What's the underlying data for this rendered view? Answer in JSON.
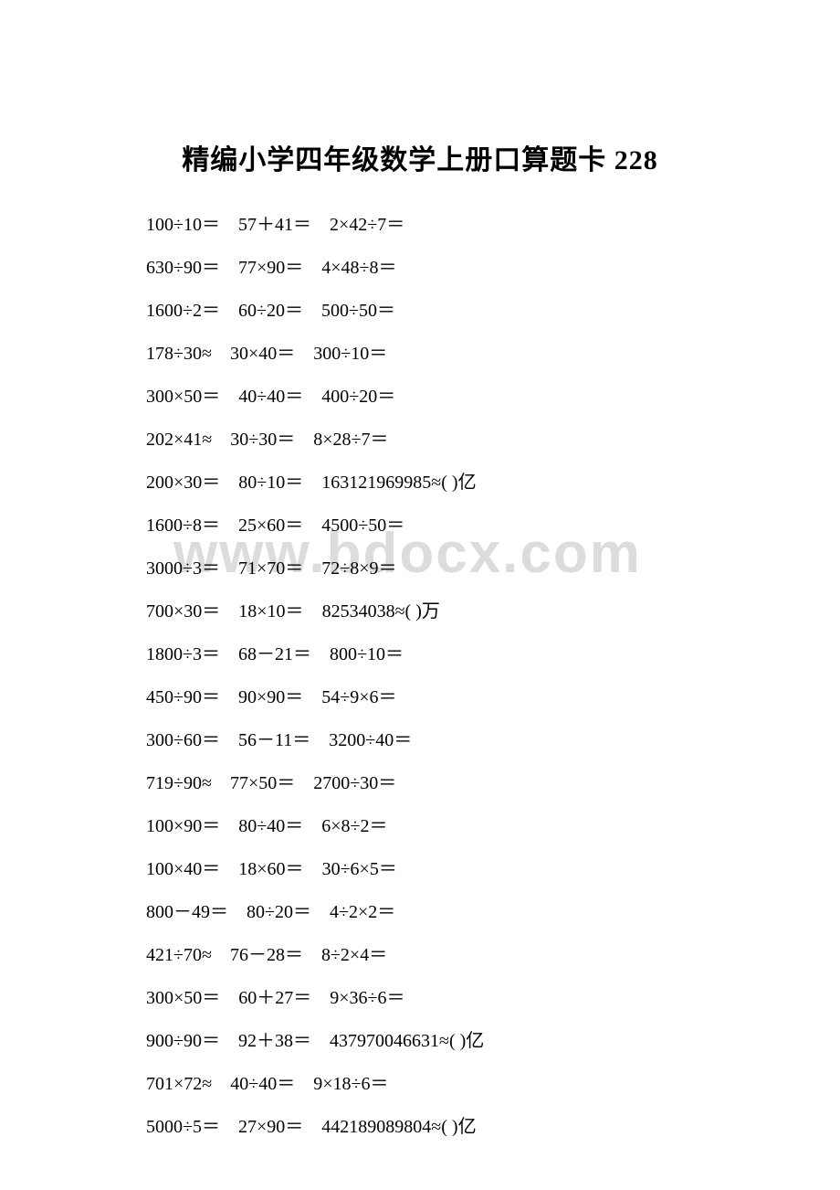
{
  "title": "精编小学四年级数学上册口算题卡 228",
  "watermark": "www.bdocx.com",
  "rows": [
    [
      "100÷10＝",
      "57＋41＝",
      "2×42÷7＝"
    ],
    [
      "630÷90＝",
      "77×90＝",
      "4×48÷8＝"
    ],
    [
      "1600÷2＝",
      "60÷20＝",
      "500÷50＝"
    ],
    [
      "178÷30≈",
      "30×40＝",
      "300÷10＝"
    ],
    [
      "300×50＝",
      "40÷40＝",
      "400÷20＝"
    ],
    [
      "202×41≈",
      "30÷30＝",
      "8×28÷7＝"
    ],
    [
      "200×30＝",
      "80÷10＝",
      "163121969985≈( )亿"
    ],
    [
      "1600÷8＝",
      "25×60＝",
      "4500÷50＝"
    ],
    [
      "3000÷3＝",
      "71×70＝",
      "72÷8×9＝"
    ],
    [
      "700×30＝",
      "18×10＝",
      "82534038≈( )万"
    ],
    [
      "1800÷3＝",
      "68－21＝",
      "800÷10＝"
    ],
    [
      "450÷90＝",
      "90×90＝",
      "54÷9×6＝"
    ],
    [
      "300÷60＝",
      "56－11＝",
      "3200÷40＝"
    ],
    [
      "719÷90≈",
      "77×50＝",
      "2700÷30＝"
    ],
    [
      "100×90＝",
      "80÷40＝",
      "6×8÷2＝"
    ],
    [
      "100×40＝",
      "18×60＝",
      "30÷6×5＝"
    ],
    [
      "800－49＝",
      "80÷20＝",
      "4÷2×2＝"
    ],
    [
      "421÷70≈",
      "76－28＝",
      "8÷2×4＝"
    ],
    [
      "300×50＝",
      "60＋27＝",
      "9×36÷6＝"
    ],
    [
      "900÷90＝",
      "92＋38＝",
      "437970046631≈( )亿"
    ],
    [
      "701×72≈",
      "40÷40＝",
      "9×18÷6＝"
    ],
    [
      "5000÷5＝",
      "27×90＝",
      "442189089804≈( )亿"
    ]
  ],
  "colors": {
    "background": "#ffffff",
    "text": "#000000",
    "watermark": "#dcdcdc"
  },
  "typography": {
    "title_fontsize": 30,
    "body_fontsize": 20,
    "watermark_fontsize": 62,
    "font_family": "SimSun"
  }
}
